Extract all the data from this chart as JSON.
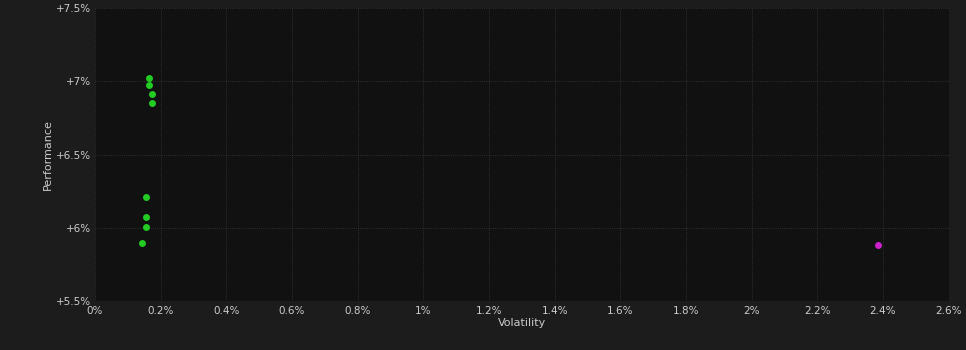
{
  "background_color": "#1c1c1c",
  "plot_bg_color": "#111111",
  "grid_color": "#3a3a3a",
  "text_color": "#cccccc",
  "xlabel": "Volatility",
  "ylabel": "Performance",
  "xlim": [
    0,
    0.026
  ],
  "ylim": [
    0.055,
    0.075
  ],
  "xticks": [
    0.0,
    0.002,
    0.004,
    0.006,
    0.008,
    0.01,
    0.012,
    0.014,
    0.016,
    0.018,
    0.02,
    0.022,
    0.024,
    0.026
  ],
  "yticks": [
    0.055,
    0.06,
    0.065,
    0.07,
    0.075
  ],
  "ytick_labels": [
    "+5.5%",
    "+6%",
    "+6.5%",
    "+7%",
    "+7.5%"
  ],
  "xtick_labels": [
    "0%",
    "0.2%",
    "0.4%",
    "0.6%",
    "0.8%",
    "1%",
    "1.2%",
    "1.4%",
    "1.6%",
    "1.8%",
    "2%",
    "2.2%",
    "2.4%",
    "2.6%"
  ],
  "green_points": [
    [
      0.00165,
      0.07025
    ],
    [
      0.00165,
      0.06975
    ],
    [
      0.00175,
      0.06915
    ],
    [
      0.00175,
      0.06855
    ],
    [
      0.00155,
      0.06215
    ],
    [
      0.00155,
      0.06075
    ],
    [
      0.00155,
      0.06005
    ],
    [
      0.00145,
      0.05895
    ]
  ],
  "magenta_points": [
    [
      0.02385,
      0.05885
    ]
  ],
  "green_color": "#22cc22",
  "magenta_color": "#cc22cc",
  "marker_size": 5
}
